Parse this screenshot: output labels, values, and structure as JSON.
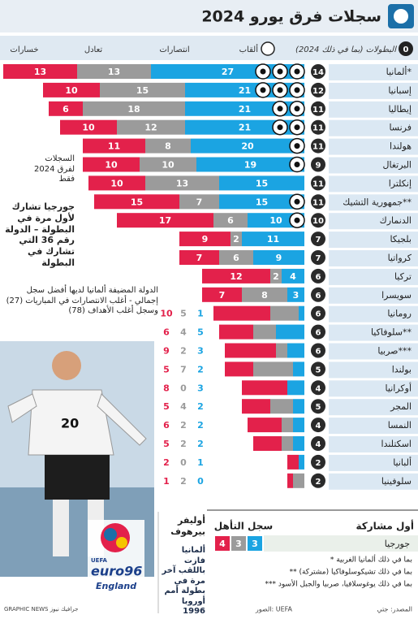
{
  "chart_data": {
    "type": "bar",
    "orientation": "horizontal",
    "stacked": true,
    "title": "سجلات فرق يورو 2024",
    "header_badge": "0",
    "columns": {
      "tournaments": "البطولات (بما في ذلك 2024)",
      "titles": "ألقاب",
      "wins": "انتصارات",
      "draws": "تعادل",
      "losses": "خسارات"
    },
    "categories": [
      "ألمانيا*",
      "إسبانيا",
      "إيطاليا",
      "فرنسا",
      "هولندا",
      "البرتغال",
      "إنكلترا",
      "جمهورية التشيك**",
      "الدنمارك",
      "بلجيكا",
      "كرواتيا",
      "تركيا",
      "سويسرا",
      "رومانيا",
      "سلوفاكيا**",
      "صربيا***",
      "بولندا",
      "أوكرانيا",
      "المجر",
      "النمسا",
      "اسكتلندا",
      "ألبانيا",
      "سلوفينيا"
    ],
    "tournaments": [
      14,
      12,
      11,
      11,
      11,
      9,
      11,
      11,
      10,
      7,
      7,
      6,
      6,
      6,
      6,
      6,
      5,
      4,
      5,
      4,
      4,
      2,
      2
    ],
    "titles": [
      3,
      3,
      2,
      2,
      1,
      1,
      0,
      1,
      1,
      0,
      0,
      0,
      0,
      0,
      0,
      0,
      0,
      0,
      0,
      0,
      0,
      0,
      0
    ],
    "series": [
      {
        "name": "انتصارات",
        "color": "#1ba4e2",
        "values": [
          27,
          21,
          21,
          21,
          20,
          19,
          15,
          15,
          10,
          11,
          9,
          4,
          3,
          1,
          5,
          3,
          2,
          3,
          2,
          2,
          2,
          1,
          0
        ]
      },
      {
        "name": "تعادل",
        "color": "#9b9b9b",
        "values": [
          13,
          15,
          18,
          12,
          8,
          10,
          13,
          7,
          6,
          2,
          6,
          2,
          8,
          5,
          4,
          2,
          7,
          0,
          4,
          2,
          2,
          0,
          2
        ]
      },
      {
        "name": "خسارات",
        "color": "#e3214b",
        "values": [
          13,
          10,
          6,
          10,
          11,
          10,
          10,
          15,
          17,
          9,
          7,
          12,
          7,
          10,
          6,
          9,
          5,
          8,
          5,
          6,
          5,
          2,
          1
        ]
      }
    ]
  },
  "notes": {
    "records": "السجلات لفرق 2024 فقط",
    "georgia": "جورجيا تشارك لأول مرة في البطولة – الدولة رقم 36 التي تشارك في البطولة",
    "germany": "الدولة المضيفة ألمانيا لديها أفضل سجل إجمالي - أغلب الانتصارات في المباريات (27) وسجل أغلب الأهداف (78)"
  },
  "first_appearance": {
    "title": "أول مشاركة",
    "record_title": "سجل التأهل",
    "team": "جورجيا",
    "record": [
      {
        "value": 4,
        "color": "#e3214b"
      },
      {
        "value": 3,
        "color": "#9b9b9b"
      },
      {
        "value": 3,
        "color": "#1ba4e2"
      }
    ]
  },
  "player": {
    "name": "أوليفر بيرهوف",
    "caption": "ألمانيا فازت باللقب آخر مرة في بطولة أمم أوروبا 1996",
    "shirt": "20"
  },
  "logo": {
    "top": "UEFA",
    "main": "euro96",
    "sub": "England"
  },
  "footnotes": [
    "* بما في ذلك ألمانيا الغربية",
    "** بما في ذلك تشيكوسلوفاكيا (مشتركة)",
    "*** بما في ذلك يوغوسلافيا، صربيا والجبل الأسود"
  ],
  "source": "المصدر: جتي",
  "photos": "الصور: UEFA",
  "credit": "GRAPHIC NEWS جرافيك نيوز"
}
